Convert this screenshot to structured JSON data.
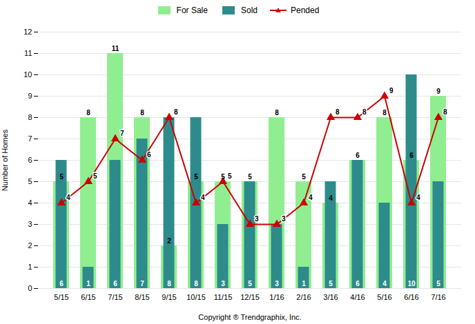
{
  "chart_data": {
    "type": "bar",
    "categories": [
      "5/15",
      "6/15",
      "7/15",
      "8/15",
      "9/15",
      "10/15",
      "11/15",
      "12/15",
      "1/16",
      "2/16",
      "3/16",
      "4/16",
      "5/16",
      "6/16",
      "7/16"
    ],
    "series": [
      {
        "name": "For Sale",
        "type": "bar",
        "color": "#90EE90",
        "values": [
          5,
          8,
          11,
          8,
          2,
          5,
          5,
          5,
          8,
          5,
          4,
          6,
          8,
          6,
          9
        ]
      },
      {
        "name": "Sold",
        "type": "bar",
        "color": "#2E8B8B",
        "values": [
          6,
          1,
          6,
          7,
          8,
          8,
          3,
          5,
          3,
          1,
          5,
          6,
          4,
          10,
          5
        ]
      },
      {
        "name": "Pended",
        "type": "line",
        "color": "#CC0000",
        "marker": "triangle",
        "values": [
          4,
          5,
          7,
          6,
          8,
          4,
          5,
          3,
          3,
          4,
          8,
          8,
          9,
          4,
          8
        ]
      }
    ],
    "ylabel": "Number of Homes",
    "xlabel": "Copyright ® Trendgraphix, Inc.",
    "ylim": [
      0,
      12
    ],
    "yticks": [
      0,
      1,
      2,
      3,
      4,
      5,
      6,
      7,
      8,
      9,
      10,
      11,
      12
    ],
    "grid": true,
    "legend": "top",
    "data_labels": true
  }
}
